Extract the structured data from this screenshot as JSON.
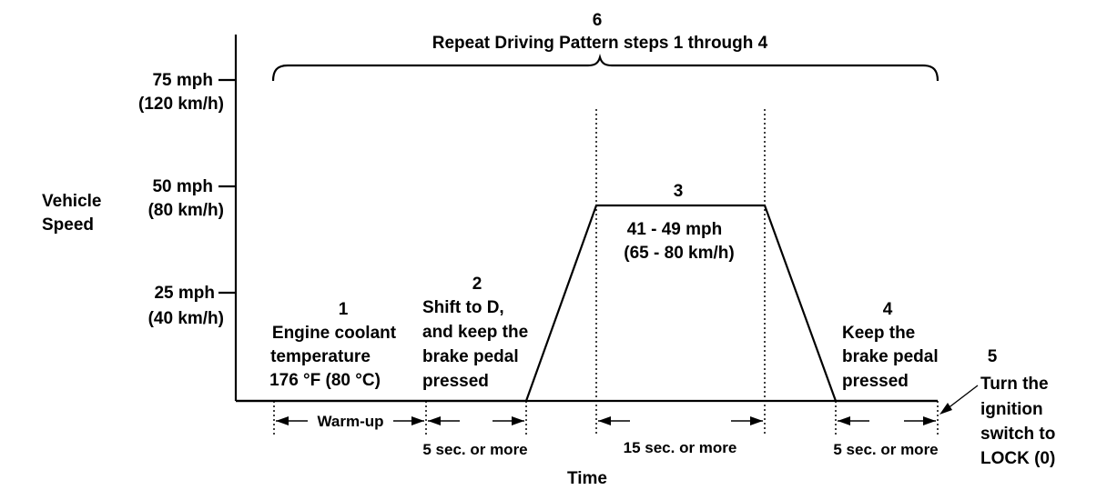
{
  "y_axis": {
    "label_line1": "Vehicle",
    "label_line2": "Speed",
    "ticks": [
      {
        "mph": "75 mph",
        "kmh": "(120 km/h)"
      },
      {
        "mph": "50 mph",
        "kmh": "(80 km/h)"
      },
      {
        "mph": "25 mph",
        "kmh": "(40 km/h)"
      }
    ]
  },
  "x_axis": {
    "label": "Time"
  },
  "step6": {
    "number": "6",
    "text": "Repeat Driving Pattern steps 1 through 4"
  },
  "step1": {
    "number": "1",
    "line1": "Engine coolant",
    "line2": "temperature",
    "line3": "176 °F (80 °C)"
  },
  "step2": {
    "number": "2",
    "line1": "Shift to D,",
    "line2": "and keep the",
    "line3": "brake pedal",
    "line4": "pressed"
  },
  "step3": {
    "number": "3",
    "line1": "41 - 49 mph",
    "line2": "(65 - 80 km/h)"
  },
  "step4": {
    "number": "4",
    "line1": "Keep the",
    "line2": "brake pedal",
    "line3": "pressed"
  },
  "step5": {
    "number": "5",
    "line1": "Turn the",
    "line2": "ignition",
    "line3": "switch to",
    "line4": "LOCK (0)"
  },
  "durations": {
    "warmup": "Warm-up",
    "d2": "5 sec. or  more",
    "d3": "15 sec. or  more",
    "d4": "5 sec. or  more"
  }
}
